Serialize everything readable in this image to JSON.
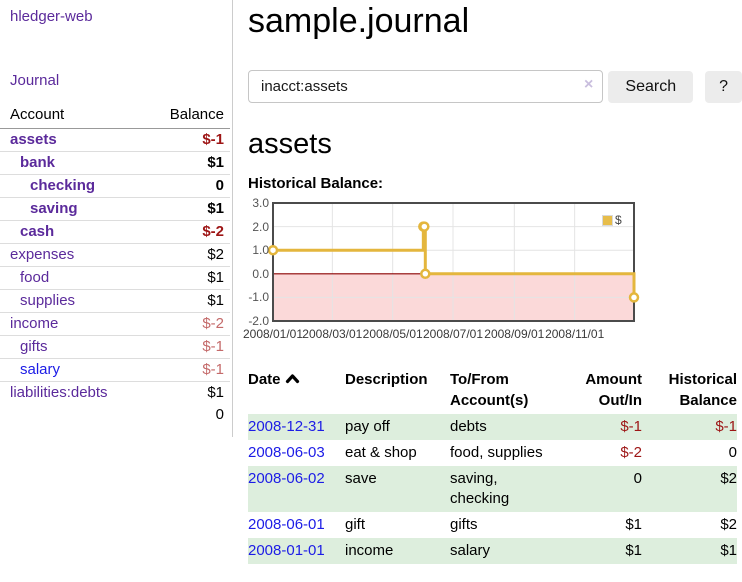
{
  "colors": {
    "link_purple": "#5b2a9b",
    "link_blue": "#1c1ce6",
    "negative_dark_red": "#9d1515",
    "negative_rose": "#c46a6a",
    "row_stripe_green": "#ddeedd",
    "chart_line_gold": "#e4b63d",
    "chart_negative_fill": "#fbd9d9",
    "chart_zero_line": "#8b0000"
  },
  "sidebar": {
    "brand": "hledger-web",
    "nav": [
      {
        "label": "Journal"
      }
    ],
    "accounts": {
      "headers": [
        "Account",
        "Balance"
      ],
      "rows": [
        {
          "name": "assets",
          "indent": 1,
          "bold": true,
          "link_color": "purple",
          "balance": "$-1",
          "balance_color": "red"
        },
        {
          "name": "bank",
          "indent": 2,
          "bold": true,
          "link_color": "purple",
          "balance": "$1",
          "balance_color": "black"
        },
        {
          "name": "checking",
          "indent": 3,
          "bold": true,
          "link_color": "purple",
          "balance": "0",
          "balance_color": "black"
        },
        {
          "name": "saving",
          "indent": 3,
          "bold": true,
          "link_color": "purple",
          "balance": "$1",
          "balance_color": "black"
        },
        {
          "name": "cash",
          "indent": 2,
          "bold": true,
          "link_color": "purple",
          "balance": "$-2",
          "balance_color": "red"
        },
        {
          "name": "expenses",
          "indent": 1,
          "bold": false,
          "link_color": "purple",
          "balance": "$2",
          "balance_color": "black"
        },
        {
          "name": "food",
          "indent": 2,
          "bold": false,
          "link_color": "purple",
          "balance": "$1",
          "balance_color": "black"
        },
        {
          "name": "supplies",
          "indent": 2,
          "bold": false,
          "link_color": "purple",
          "balance": "$1",
          "balance_color": "black"
        },
        {
          "name": "income",
          "indent": 1,
          "bold": false,
          "link_color": "purple",
          "balance": "$-2",
          "balance_color": "rose"
        },
        {
          "name": "gifts",
          "indent": 2,
          "bold": false,
          "link_color": "purple",
          "balance": "$-1",
          "balance_color": "rose"
        },
        {
          "name": "salary",
          "indent": 2,
          "bold": false,
          "link_color": "blue",
          "balance": "$-1",
          "balance_color": "rose"
        },
        {
          "name": "liabilities:debts",
          "indent": 1,
          "bold": false,
          "link_color": "purple",
          "balance": "$1",
          "balance_color": "black"
        }
      ],
      "total": "0"
    }
  },
  "header": {
    "title": "sample.journal"
  },
  "search": {
    "value": "inacct:assets",
    "clear_icon": "×",
    "search_label": "Search",
    "help_label": "?"
  },
  "main": {
    "account_heading": "assets",
    "chart_label": "Historical Balance:"
  },
  "chart_data": {
    "type": "line",
    "step": true,
    "title": "Historical Balance:",
    "xlim": [
      "2008-01-01",
      "2008-12-31"
    ],
    "ylim": [
      -2,
      3
    ],
    "y_ticks": [
      3.0,
      2.0,
      1.0,
      0.0,
      -1.0,
      -2.0
    ],
    "x_ticks": [
      "2008/01/01",
      "2008/03/01",
      "2008/05/01",
      "2008/07/01",
      "2008/09/01",
      "2008/11/01"
    ],
    "grid": true,
    "legend": {
      "label": "$",
      "position": "top-right",
      "swatch_color": "#e7bd4a"
    },
    "zero_line_color": "#8b0000",
    "negative_region_fill": "#fbd9d9",
    "series": [
      {
        "name": "$",
        "color": "#e4b63d",
        "points": [
          {
            "x": "2008-01-01",
            "y": 1
          },
          {
            "x": "2008-06-01",
            "y": 2
          },
          {
            "x": "2008-06-02",
            "y": 2
          },
          {
            "x": "2008-06-03",
            "y": 0
          },
          {
            "x": "2008-12-31",
            "y": -1
          }
        ]
      }
    ]
  },
  "register": {
    "columns": [
      {
        "label": "Date",
        "sort": "ascending"
      },
      {
        "label": "Description"
      },
      {
        "label": "To/From Account(s)"
      },
      {
        "label": "Amount Out/In"
      },
      {
        "label": "Historical Balance"
      }
    ],
    "rows": [
      {
        "date": "2008-12-31",
        "description": "pay off",
        "accounts": "debts",
        "amount": "$-1",
        "amount_negative": true,
        "balance": "$-1",
        "balance_negative": true
      },
      {
        "date": "2008-06-03",
        "description": "eat & shop",
        "accounts": "food, supplies",
        "amount": "$-2",
        "amount_negative": true,
        "balance": "0",
        "balance_negative": false
      },
      {
        "date": "2008-06-02",
        "description": "save",
        "accounts": "saving, checking",
        "amount": "0",
        "amount_negative": false,
        "balance": "$2",
        "balance_negative": false
      },
      {
        "date": "2008-06-01",
        "description": "gift",
        "accounts": "gifts",
        "amount": "$1",
        "amount_negative": false,
        "balance": "$2",
        "balance_negative": false
      },
      {
        "date": "2008-01-01",
        "description": "income",
        "accounts": "salary",
        "amount": "$1",
        "amount_negative": false,
        "balance": "$1",
        "balance_negative": false
      }
    ]
  }
}
